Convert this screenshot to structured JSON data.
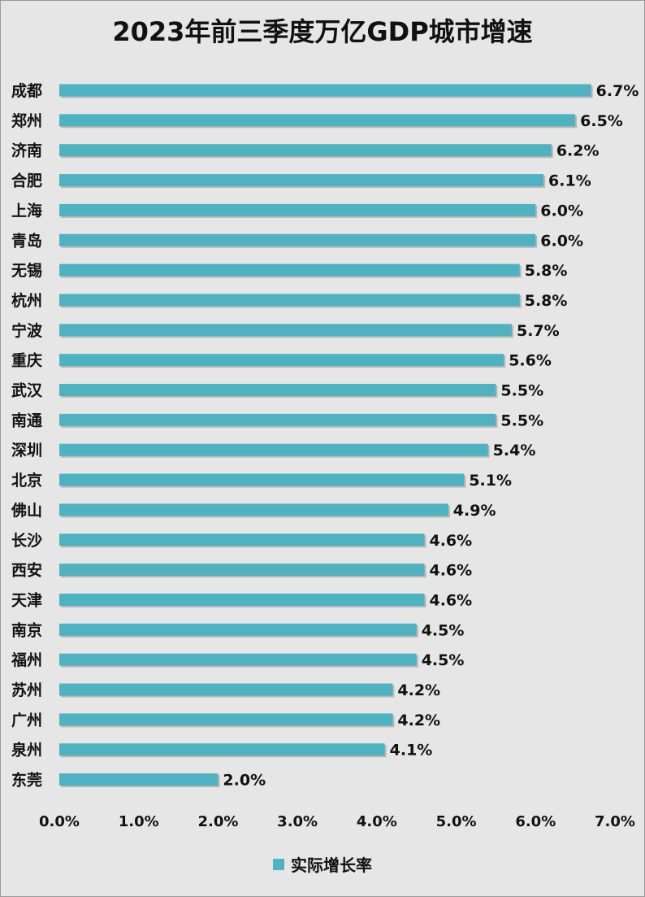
{
  "chart_data": {
    "type": "bar",
    "orientation": "horizontal",
    "title": "2023年前三季度万亿GDP城市增速",
    "categories": [
      "成都",
      "郑州",
      "济南",
      "合肥",
      "上海",
      "青岛",
      "无锡",
      "杭州",
      "宁波",
      "重庆",
      "武汉",
      "南通",
      "深圳",
      "北京",
      "佛山",
      "长沙",
      "西安",
      "天津",
      "南京",
      "福州",
      "苏州",
      "广州",
      "泉州",
      "东莞"
    ],
    "series": [
      {
        "name": "实际增长率",
        "values": [
          6.7,
          6.5,
          6.2,
          6.1,
          6.0,
          6.0,
          5.8,
          5.8,
          5.7,
          5.6,
          5.5,
          5.5,
          5.4,
          5.1,
          4.9,
          4.6,
          4.6,
          4.6,
          4.5,
          4.5,
          4.2,
          4.2,
          4.1,
          2.0
        ],
        "labels": [
          "6.7%",
          "6.5%",
          "6.2%",
          "6.1%",
          "6.0%",
          "6.0%",
          "5.8%",
          "5.8%",
          "5.7%",
          "5.6%",
          "5.5%",
          "5.5%",
          "5.4%",
          "5.1%",
          "4.9%",
          "4.6%",
          "4.6%",
          "4.6%",
          "4.5%",
          "4.5%",
          "4.2%",
          "4.2%",
          "4.1%",
          "2.0%"
        ]
      }
    ],
    "xlim": [
      0,
      7
    ],
    "x_ticks": [
      "0.0%",
      "1.0%",
      "2.0%",
      "3.0%",
      "4.0%",
      "5.0%",
      "6.0%",
      "7.0%"
    ],
    "grid": false,
    "legend_position": "bottom"
  },
  "colors": {
    "bar": "#4fb2c1",
    "bar_shadow": "#9a9a9a",
    "background": "#e6e6e6",
    "text": "#111111"
  }
}
